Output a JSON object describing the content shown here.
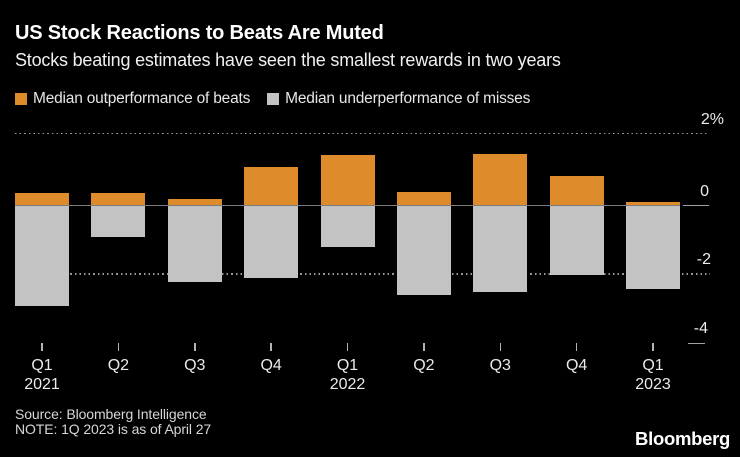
{
  "header": {
    "title": "US Stock Reactions to Beats Are Muted",
    "subtitle": "Stocks beating estimates have seen the smallest rewards in two years"
  },
  "legend": {
    "items": [
      {
        "key": "beats",
        "label": "Median outperformance of beats",
        "color": "#DE8C2B"
      },
      {
        "key": "misses",
        "label": "Median underperformance of misses",
        "color": "#C3C3C3"
      }
    ]
  },
  "chart_data": {
    "type": "bar",
    "subtype": "diverging-stacked-around-zero",
    "categories": [
      {
        "quarter": "Q1",
        "year": "2021"
      },
      {
        "quarter": "Q2",
        "year": ""
      },
      {
        "quarter": "Q3",
        "year": ""
      },
      {
        "quarter": "Q4",
        "year": ""
      },
      {
        "quarter": "Q1",
        "year": "2022"
      },
      {
        "quarter": "Q2",
        "year": ""
      },
      {
        "quarter": "Q3",
        "year": ""
      },
      {
        "quarter": "Q4",
        "year": ""
      },
      {
        "quarter": "Q1",
        "year": "2023"
      }
    ],
    "series": [
      {
        "name": "Median outperformance of beats",
        "color": "#DE8C2B",
        "values": [
          0.35,
          0.35,
          0.2,
          1.1,
          1.45,
          0.4,
          1.5,
          0.85,
          0.1
        ]
      },
      {
        "name": "Median underperformance of misses",
        "color": "#C3C3C3",
        "values": [
          -2.9,
          -0.9,
          -2.2,
          -2.1,
          -1.2,
          -2.6,
          -2.5,
          -2.0,
          -2.4
        ]
      }
    ],
    "y_ticks": [
      {
        "label": "2%",
        "value": 2
      },
      {
        "label": "0",
        "value": 0
      },
      {
        "label": "-2",
        "value": -2
      },
      {
        "label": "-4",
        "value": -4
      }
    ],
    "ylim": [
      -4.6,
      2.3
    ],
    "unit": "percent",
    "grid": "horizontal dotted lines at 2 and -2, solid zero line",
    "legend_position": "top-left"
  },
  "footer": {
    "source": "Source: Bloomberg Intelligence",
    "note": "NOTE: 1Q 2023 is as of April 27",
    "brand": "Bloomberg"
  },
  "colors": {
    "background": "#000000",
    "beats": "#DE8C2B",
    "misses": "#C3C3C3",
    "gridline": "#969696",
    "zero_line": "#7B7B7B",
    "text": "#FFFFFF"
  }
}
